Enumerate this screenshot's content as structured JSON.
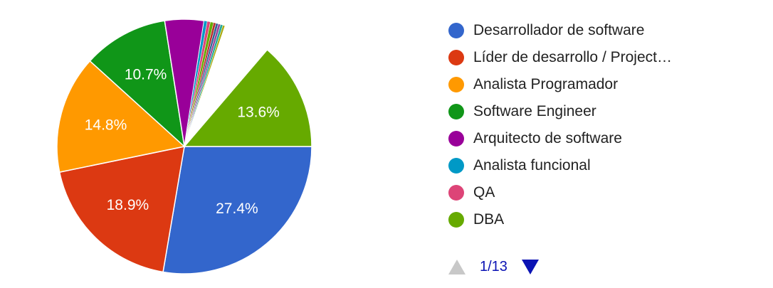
{
  "chart_data": {
    "type": "pie",
    "slices": [
      {
        "name": "Desarrollador de software",
        "value": 27.4,
        "label": "27.4%",
        "color": "#3366cc"
      },
      {
        "name": "Líder de desarrollo / Project…",
        "value": 18.9,
        "label": "18.9%",
        "color": "#dc3912"
      },
      {
        "name": "Analista Programador",
        "value": 14.8,
        "label": "14.8%",
        "color": "#ff9900"
      },
      {
        "name": "Software Engineer",
        "value": 10.7,
        "label": "10.7%",
        "color": "#109618"
      },
      {
        "name": "Arquitecto de software",
        "value": 4.9,
        "label": "",
        "color": "#990099"
      },
      {
        "name": "Analista funcional",
        "value": 0.4,
        "label": "",
        "color": "#0099c6"
      },
      {
        "name": "QA",
        "value": 0.4,
        "label": "",
        "color": "#dd4477"
      },
      {
        "name": "DBA",
        "value": 0.4,
        "label": "",
        "color": "#66aa00"
      },
      {
        "name": "",
        "value": 0.3,
        "label": "",
        "color": "#b82e2e"
      },
      {
        "name": "",
        "value": 0.3,
        "label": "",
        "color": "#316395"
      },
      {
        "name": "",
        "value": 0.3,
        "label": "",
        "color": "#994499"
      },
      {
        "name": "",
        "value": 0.3,
        "label": "",
        "color": "#22aa99"
      },
      {
        "name": "",
        "value": 0.3,
        "label": "",
        "color": "#aaaa11"
      },
      {
        "name": "",
        "value": 6.0,
        "label": "",
        "color": "#ffffff"
      },
      {
        "name": "",
        "value": 13.6,
        "label": "13.6%",
        "color": "#66aa00"
      }
    ]
  },
  "legend": {
    "items": [
      {
        "label": "Desarrollador de software",
        "color": "#3366cc"
      },
      {
        "label": "Líder de desarrollo / Project…",
        "color": "#dc3912"
      },
      {
        "label": "Analista Programador",
        "color": "#ff9900"
      },
      {
        "label": "Software Engineer",
        "color": "#109618"
      },
      {
        "label": "Arquitecto de software",
        "color": "#990099"
      },
      {
        "label": "Analista funcional",
        "color": "#0099c6"
      },
      {
        "label": "QA",
        "color": "#dd4477"
      },
      {
        "label": "DBA",
        "color": "#66aa00"
      }
    ]
  },
  "pager": {
    "text": "1/13",
    "up_icon": "triangle-up-icon",
    "down_icon": "triangle-down-icon"
  }
}
